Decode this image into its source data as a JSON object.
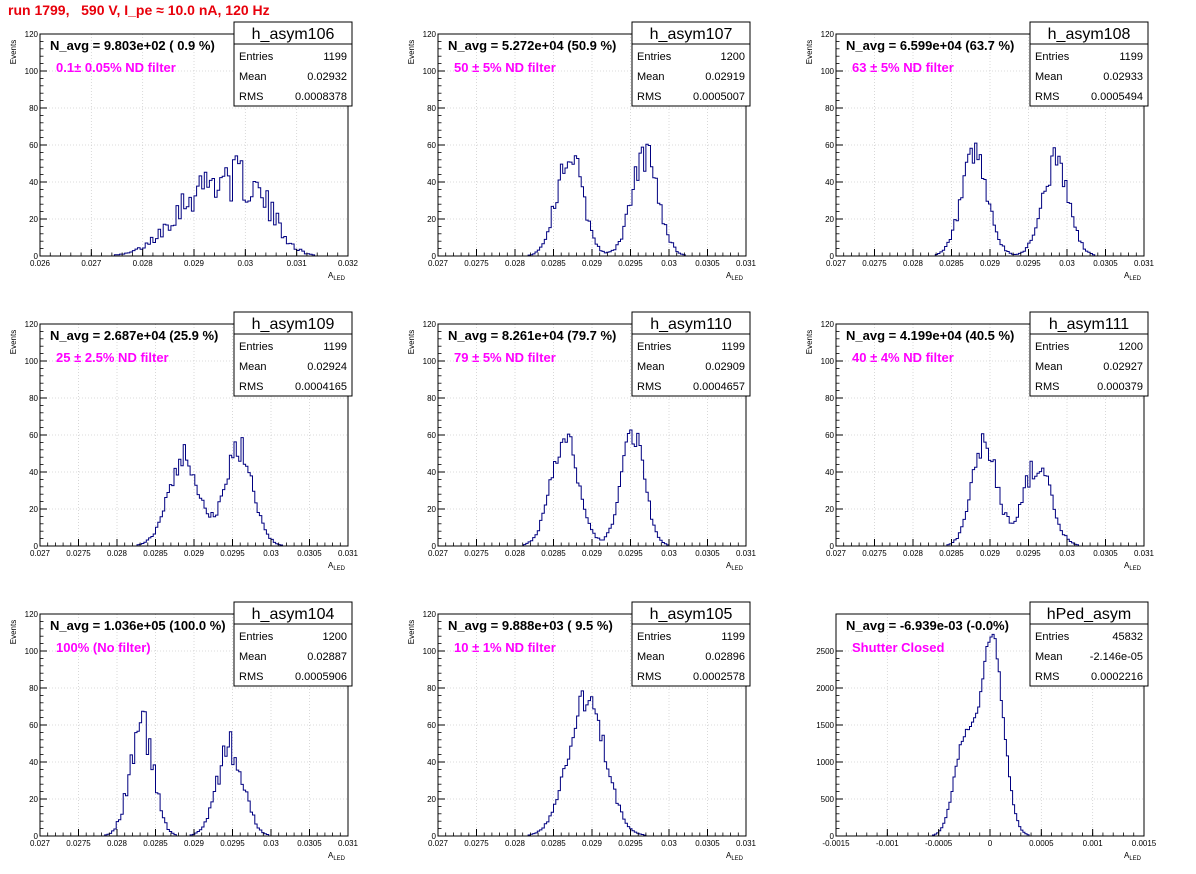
{
  "header": {
    "run_label": "run 1799,   590 V, I_pe ≈ 10.0 nA, 120 Hz"
  },
  "chart_data": [
    {
      "type": "histogram",
      "hist_name": "h_asym106",
      "navg_label": "N_avg = 9.803e+02 ( 0.9 %)",
      "filter_label": "0.1± 0.05% ND filter",
      "stats": {
        "entries": "1199",
        "mean": "0.02932",
        "rms": "0.0008378"
      },
      "xlabel": "A",
      "xlabel_sub": "LED",
      "ylabel": "Events",
      "xlim": [
        0.026,
        0.032
      ],
      "ylim": [
        0,
        120
      ],
      "xticks": [
        0.026,
        0.027,
        0.028,
        0.029,
        0.03,
        0.031,
        0.032
      ],
      "xtick_labels": [
        "0.026",
        "0.027",
        "0.028",
        "0.029",
        "0.03",
        "0.031",
        "0.032"
      ],
      "yticks": [
        0,
        20,
        40,
        60,
        80,
        100,
        120
      ],
      "peaks": [
        {
          "center": 0.02905,
          "amp": 30,
          "sigma": 0.00055
        },
        {
          "center": 0.02985,
          "amp": 27,
          "sigma": 0.00045
        },
        {
          "center": 0.0304,
          "amp": 14,
          "sigma": 0.00035
        }
      ],
      "bin_width": 5e-05,
      "noise": 0.3
    },
    {
      "type": "histogram",
      "hist_name": "h_asym107",
      "navg_label": "N_avg = 5.272e+04 (50.9 %)",
      "filter_label": "50 ± 5% ND filter",
      "stats": {
        "entries": "1200",
        "mean": "0.02919",
        "rms": "0.0005007"
      },
      "xlabel": "A",
      "xlabel_sub": "LED",
      "ylabel": "Events",
      "xlim": [
        0.027,
        0.031
      ],
      "ylim": [
        0,
        120
      ],
      "xticks": [
        0.027,
        0.0275,
        0.028,
        0.0285,
        0.029,
        0.0295,
        0.03,
        0.0305,
        0.031
      ],
      "xtick_labels": [
        "0.027",
        "0.0275",
        "0.028",
        "0.0285",
        "0.029",
        "0.0295",
        "0.03",
        "0.0305",
        "0.031"
      ],
      "yticks": [
        0,
        20,
        40,
        60,
        80,
        100,
        120
      ],
      "peaks": [
        {
          "center": 0.02871,
          "amp": 55,
          "sigma": 0.00017
        },
        {
          "center": 0.02969,
          "amp": 55,
          "sigma": 0.00017
        }
      ],
      "bin_width": 3e-05,
      "noise": 0.18
    },
    {
      "type": "histogram",
      "hist_name": "h_asym108",
      "navg_label": "N_avg = 6.599e+04 (63.7 %)",
      "filter_label": "63 ± 5% ND filter",
      "stats": {
        "entries": "1199",
        "mean": "0.02933",
        "rms": "0.0005494"
      },
      "xlabel": "A",
      "xlabel_sub": "LED",
      "ylabel": "Events",
      "xlim": [
        0.027,
        0.031
      ],
      "ylim": [
        0,
        120
      ],
      "xticks": [
        0.027,
        0.0275,
        0.028,
        0.0285,
        0.029,
        0.0295,
        0.03,
        0.0305,
        0.031
      ],
      "xtick_labels": [
        "0.027",
        "0.0275",
        "0.028",
        "0.0285",
        "0.029",
        "0.0295",
        "0.03",
        "0.0305",
        "0.031"
      ],
      "yticks": [
        0,
        20,
        40,
        60,
        80,
        100,
        120
      ],
      "peaks": [
        {
          "center": 0.0288,
          "amp": 52,
          "sigma": 0.00017
        },
        {
          "center": 0.02985,
          "amp": 50,
          "sigma": 0.00017
        }
      ],
      "bin_width": 3e-05,
      "noise": 0.18
    },
    {
      "type": "histogram",
      "hist_name": "h_asym109",
      "navg_label": "N_avg = 2.687e+04 (25.9 %)",
      "filter_label": "25 ± 2.5% ND filter",
      "stats": {
        "entries": "1199",
        "mean": "0.02924",
        "rms": "0.0004165"
      },
      "xlabel": "A",
      "xlabel_sub": "LED",
      "ylabel": "Events",
      "xlim": [
        0.027,
        0.031
      ],
      "ylim": [
        0,
        120
      ],
      "xticks": [
        0.027,
        0.0275,
        0.028,
        0.0285,
        0.029,
        0.0295,
        0.03,
        0.0305,
        0.031
      ],
      "xtick_labels": [
        "0.027",
        "0.0275",
        "0.028",
        "0.0285",
        "0.029",
        "0.0295",
        "0.03",
        "0.0305",
        "0.031"
      ],
      "yticks": [
        0,
        20,
        40,
        60,
        80,
        100,
        120
      ],
      "peaks": [
        {
          "center": 0.02887,
          "amp": 48,
          "sigma": 0.0002
        },
        {
          "center": 0.02959,
          "amp": 52,
          "sigma": 0.00018
        }
      ],
      "bin_width": 3e-05,
      "noise": 0.15
    },
    {
      "type": "histogram",
      "hist_name": "h_asym110",
      "navg_label": "N_avg = 8.261e+04 (79.7 %)",
      "filter_label": "79 ± 5% ND filter",
      "stats": {
        "entries": "1199",
        "mean": "0.02909",
        "rms": "0.0004657"
      },
      "xlabel": "A",
      "xlabel_sub": "LED",
      "ylabel": "Events",
      "xlim": [
        0.027,
        0.031
      ],
      "ylim": [
        0,
        120
      ],
      "xticks": [
        0.027,
        0.0275,
        0.028,
        0.0285,
        0.029,
        0.0295,
        0.03,
        0.0305,
        0.031
      ],
      "xtick_labels": [
        "0.027",
        "0.0275",
        "0.028",
        "0.0285",
        "0.029",
        "0.0295",
        "0.03",
        "0.0305",
        "0.031"
      ],
      "yticks": [
        0,
        20,
        40,
        60,
        80,
        100,
        120
      ],
      "peaks": [
        {
          "center": 0.02865,
          "amp": 58,
          "sigma": 0.00018
        },
        {
          "center": 0.02953,
          "amp": 62,
          "sigma": 0.00015
        }
      ],
      "bin_width": 3e-05,
      "noise": 0.12
    },
    {
      "type": "histogram",
      "hist_name": "h_asym111",
      "navg_label": "N_avg = 4.199e+04 (40.5 %)",
      "filter_label": "40 ± 4% ND filter",
      "stats": {
        "entries": "1200",
        "mean": "0.02927",
        "rms": "0.000379"
      },
      "xlabel": "A",
      "xlabel_sub": "LED",
      "ylabel": "Events",
      "xlim": [
        0.027,
        0.031
      ],
      "ylim": [
        0,
        120
      ],
      "xticks": [
        0.027,
        0.0275,
        0.028,
        0.0285,
        0.029,
        0.0295,
        0.03,
        0.0305,
        0.031
      ],
      "xtick_labels": [
        "0.027",
        "0.0275",
        "0.028",
        "0.0285",
        "0.029",
        "0.0295",
        "0.03",
        "0.0305",
        "0.031"
      ],
      "yticks": [
        0,
        20,
        40,
        60,
        80,
        100,
        120
      ],
      "peaks": [
        {
          "center": 0.02893,
          "amp": 56,
          "sigma": 0.00016
        },
        {
          "center": 0.02961,
          "amp": 44,
          "sigma": 0.00018
        }
      ],
      "bin_width": 3e-05,
      "noise": 0.15
    },
    {
      "type": "histogram",
      "hist_name": "h_asym104",
      "navg_label": "N_avg = 1.036e+05 (100.0 %)",
      "filter_label": "100% (No filter)",
      "stats": {
        "entries": "1200",
        "mean": "0.02887",
        "rms": "0.0005906"
      },
      "xlabel": "A",
      "xlabel_sub": "LED",
      "ylabel": "Events",
      "xlim": [
        0.027,
        0.031
      ],
      "ylim": [
        0,
        120
      ],
      "xticks": [
        0.027,
        0.0275,
        0.028,
        0.0285,
        0.029,
        0.0295,
        0.03,
        0.0305,
        0.031
      ],
      "xtick_labels": [
        "0.027",
        "0.0275",
        "0.028",
        "0.0285",
        "0.029",
        "0.0295",
        "0.03",
        "0.0305",
        "0.031"
      ],
      "yticks": [
        0,
        20,
        40,
        60,
        80,
        100,
        120
      ],
      "peaks": [
        {
          "center": 0.02832,
          "amp": 60,
          "sigma": 0.00015
        },
        {
          "center": 0.02947,
          "amp": 48,
          "sigma": 0.00017
        }
      ],
      "bin_width": 3e-05,
      "noise": 0.2
    },
    {
      "type": "histogram",
      "hist_name": "h_asym105",
      "navg_label": "N_avg = 9.888e+03 ( 9.5 %)",
      "filter_label": "10 ± 1% ND filter",
      "stats": {
        "entries": "1199",
        "mean": "0.02896",
        "rms": "0.0002578"
      },
      "xlabel": "A",
      "xlabel_sub": "LED",
      "ylabel": "Events",
      "xlim": [
        0.027,
        0.031
      ],
      "ylim": [
        0,
        120
      ],
      "xticks": [
        0.027,
        0.0275,
        0.028,
        0.0285,
        0.029,
        0.0295,
        0.03,
        0.0305,
        0.031
      ],
      "xtick_labels": [
        "0.027",
        "0.0275",
        "0.028",
        "0.0285",
        "0.029",
        "0.0295",
        "0.03",
        "0.0305",
        "0.031"
      ],
      "yticks": [
        0,
        20,
        40,
        60,
        80,
        100,
        120
      ],
      "peaks": [
        {
          "center": 0.02893,
          "amp": 74,
          "sigma": 0.00024
        }
      ],
      "bin_width": 3e-05,
      "noise": 0.1
    },
    {
      "type": "histogram",
      "hist_name": "hPed_asym",
      "navg_label": "N_avg = -6.939e-03 (-0.0%)",
      "filter_label": "Shutter Closed",
      "stats": {
        "entries": "45832",
        "mean": "-2.146e-05",
        "rms": "0.0002216"
      },
      "xlabel": "A",
      "xlabel_sub": "LED",
      "ylabel": "",
      "xlim": [
        -0.0015,
        0.0015
      ],
      "ylim": [
        0,
        3000
      ],
      "xticks": [
        -0.0015,
        -0.001,
        -0.0005,
        0,
        0.0005,
        0.001,
        0.0015
      ],
      "xtick_labels": [
        "-0.0015",
        "-0.001",
        "-0.0005",
        "0",
        "0.0005",
        "0.001",
        "0.0015"
      ],
      "yticks": [
        0,
        500,
        1000,
        1500,
        2000,
        2500
      ],
      "peaks": [
        {
          "center": -0.00025,
          "amp": 1250,
          "sigma": 0.0001
        },
        {
          "center": 2e-05,
          "amp": 2650,
          "sigma": 0.00011
        }
      ],
      "bin_width": 2e-05,
      "noise": 0.04
    }
  ]
}
